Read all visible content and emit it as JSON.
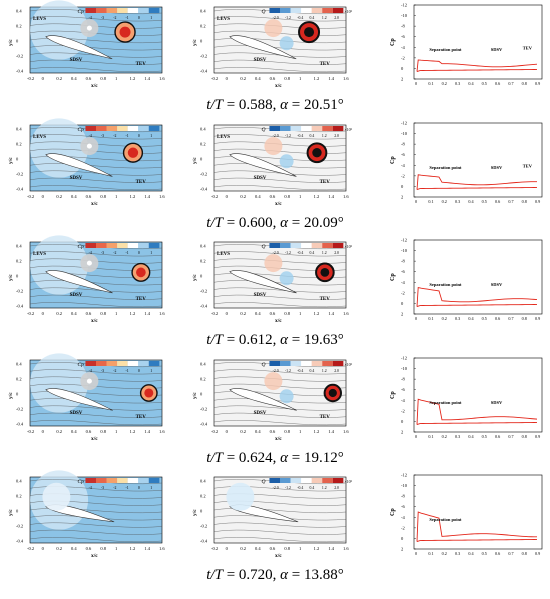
{
  "colors": {
    "background": "#ffffff",
    "field_blue": "#8cc3e6",
    "field_light": "#cfe6f5",
    "airfoil": "#ffffff",
    "cp_curve": "#e3261a",
    "streamline": "#4a4a4a",
    "vortex_dark": "#111111",
    "vortex_red": "#d7281f",
    "vortex_orange": "#f4a070"
  },
  "axes": {
    "field_x_label": "x/c",
    "field_y_label": "y/c",
    "field_x_ticks": [
      "-0.2",
      "0",
      "0.2",
      "0.4",
      "0.6",
      "0.8",
      "1",
      "1.2",
      "1.4",
      "1.6"
    ],
    "field_y_ticks": [
      "0.4",
      "0.2",
      "0",
      "-0.2",
      "-0.4"
    ],
    "cp_y_label": "Cp",
    "cp_y_ticks": [
      "-12",
      "-10",
      "-8",
      "-6",
      "-4",
      "-2",
      "0",
      "2"
    ],
    "cp_x_ticks": [
      "0",
      "0.1",
      "0.2",
      "0.3",
      "0.4",
      "0.5",
      "0.6",
      "0.7",
      "0.8",
      "0.9"
    ]
  },
  "legends": {
    "cp_title": "Cp",
    "cp_ticks": [
      "-4",
      "-3",
      "-2",
      "-1",
      "0",
      "1"
    ],
    "q_title": "Q",
    "q_ticks": [
      "-2.0",
      "-1.2",
      "-0.4",
      "0.4",
      "1.2",
      "2.0"
    ],
    "q_scale": "×10³"
  },
  "rows": [
    {
      "caption_t": "0.588",
      "caption_alpha": "20.51°",
      "labels": {
        "levs": "LEVS",
        "sdsv": "SDSV",
        "tev": "TEV"
      },
      "cp_labels": {
        "sep": "Separation point",
        "sdsv": "SDSV",
        "tev": "TEV"
      }
    },
    {
      "caption_t": "0.600",
      "caption_alpha": "20.09°",
      "labels": {
        "levs": "LEVS",
        "sdsv": "SDSV",
        "tev": "TEV"
      },
      "cp_labels": {
        "sep": "Separation point",
        "sdsv": "SDSV",
        "tev": "TEV"
      }
    },
    {
      "caption_t": "0.612",
      "caption_alpha": "19.63°",
      "labels": {
        "levs": "LEVS",
        "sdsv": "SDSV",
        "tev": "TEV"
      },
      "cp_labels": {
        "sep": "Separation point",
        "sdsv": "SDSV",
        "tev": ""
      }
    },
    {
      "caption_t": "0.624",
      "caption_alpha": "19.12°",
      "labels": {
        "levs": "",
        "sdsv": "SDSV",
        "tev": "TEV"
      },
      "cp_labels": {
        "sep": "Separation point",
        "sdsv": "SDSV",
        "tev": ""
      }
    },
    {
      "caption_t": "0.720",
      "caption_alpha": "13.88°",
      "labels": {
        "levs": "",
        "sdsv": "",
        "tev": ""
      },
      "cp_labels": {
        "sep": "Separation point",
        "sdsv": "",
        "tev": ""
      }
    }
  ],
  "caption_template": {
    "t_sym": "t/T",
    "alpha_sym": "α"
  }
}
